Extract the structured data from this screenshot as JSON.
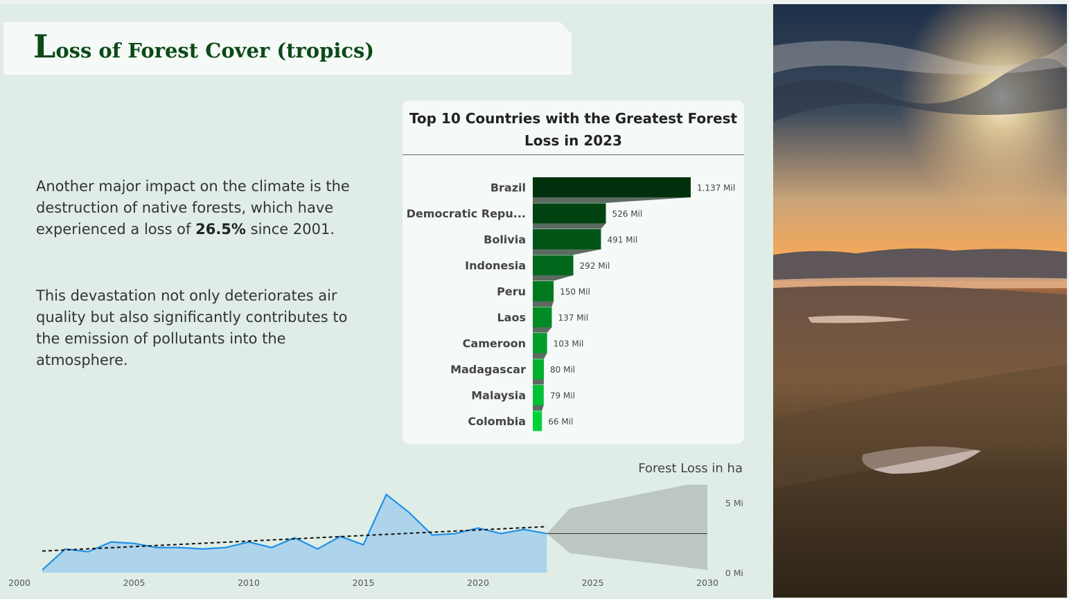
{
  "header": {
    "title_initial": "L",
    "title_rest": "oss of Forest Cover (tropics)"
  },
  "text": {
    "p1_a": "Another major impact on the climate is the destruction of native forests, which have experienced a loss of ",
    "p1_bold": "26.5%",
    "p1_b": " since 2001.",
    "p2": "This devastation not only deteriorates air quality but also significantly contributes to the emission of pollutants into the atmosphere."
  },
  "colors": {
    "bar_dark": "#00310c",
    "bar_light": "#00d33a",
    "line": "#1e90e8",
    "area": "#aed4ec",
    "forecast": "#bcc7c3"
  },
  "chart_data": [
    {
      "type": "bar",
      "orientation": "horizontal",
      "title": "Top 10 Countries with the Greatest Forest Loss in 2023",
      "categories": [
        "Brazil",
        "Democratic Repu...",
        "Bolivia",
        "Indonesia",
        "Peru",
        "Laos",
        "Cameroon",
        "Madagascar",
        "Malaysia",
        "Colombia"
      ],
      "values": [
        1137,
        526,
        491,
        292,
        150,
        137,
        103,
        80,
        79,
        66
      ],
      "value_labels": [
        "1.137 Mil",
        "526 Mil",
        "491 Mil",
        "292 Mil",
        "150 Mil",
        "137 Mil",
        "103 Mil",
        "80 Mil",
        "79 Mil",
        "66 Mil"
      ]
    },
    {
      "type": "area",
      "title": "Forest Loss in ha",
      "x": [
        2001,
        2002,
        2003,
        2004,
        2005,
        2006,
        2007,
        2008,
        2009,
        2010,
        2011,
        2012,
        2013,
        2014,
        2015,
        2016,
        2017,
        2018,
        2019,
        2020,
        2021,
        2022,
        2023
      ],
      "values": [
        0.2,
        1.7,
        1.5,
        2.2,
        2.1,
        1.8,
        1.8,
        1.7,
        1.8,
        2.2,
        1.8,
        2.5,
        1.7,
        2.6,
        2.0,
        5.6,
        4.3,
        2.7,
        2.8,
        3.2,
        2.8,
        3.1,
        2.8
      ],
      "trend": {
        "x": [
          2001,
          2023
        ],
        "y": [
          1.55,
          3.3
        ]
      },
      "forecast": {
        "x": [
          2023,
          2024,
          2030
        ],
        "mid": [
          2.8,
          2.8,
          2.8
        ],
        "upper": [
          2.8,
          4.6,
          6.6
        ],
        "lower": [
          2.8,
          1.4,
          0.2
        ]
      },
      "xlim": [
        2000,
        2030
      ],
      "ylim": [
        0,
        6.3
      ],
      "xticks": [
        "2000",
        "2005",
        "2010",
        "2015",
        "2020",
        "2025",
        "2030"
      ],
      "yticks": [
        "0 Mi",
        "5 Mi"
      ]
    }
  ]
}
